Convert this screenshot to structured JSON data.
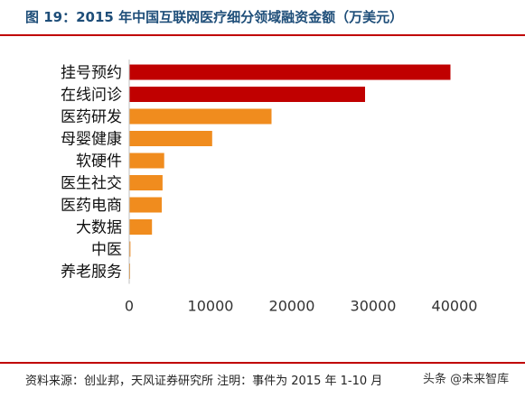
{
  "title": "图 19：2015 年中国互联网医疗细分领域融资金额（万美元）",
  "source": "资料来源：创业邦，天风证券研究所  注明：事件为 2015 年 1-10 月",
  "watermark": "头条 @未来智库",
  "chart_data": {
    "type": "bar",
    "orientation": "horizontal",
    "title": "",
    "xlabel": "",
    "ylabel": "",
    "xlim": [
      0,
      40000
    ],
    "ticks": [
      "0",
      "10000",
      "20000",
      "30000",
      "40000"
    ],
    "grid": false,
    "legend": "none",
    "categories": [
      "挂号预约",
      "在线问诊",
      "医药研发",
      "母婴健康",
      "软硬件",
      "医生社交",
      "医药电商",
      "大数据",
      "中医",
      "养老服务"
    ],
    "values": [
      39500,
      29000,
      17500,
      10200,
      4300,
      4100,
      4000,
      2800,
      150,
      100
    ],
    "colors": [
      "#c00000",
      "#c00000",
      "#f08c1e",
      "#f08c1e",
      "#f08c1e",
      "#f08c1e",
      "#f08c1e",
      "#f08c1e",
      "#f08c1e",
      "#f08c1e"
    ]
  }
}
